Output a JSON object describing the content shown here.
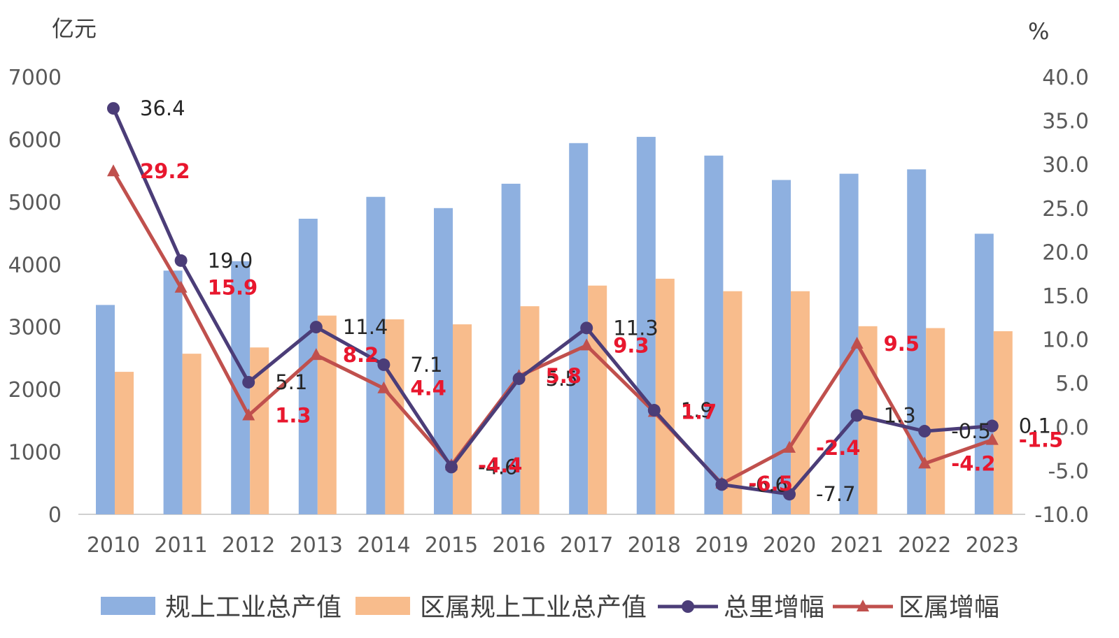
{
  "chart_data": {
    "type": "bar",
    "left_axis_unit": "亿元",
    "right_axis_unit": "%",
    "categories": [
      "2010",
      "2011",
      "2012",
      "2013",
      "2014",
      "2015",
      "2016",
      "2017",
      "2018",
      "2019",
      "2020",
      "2021",
      "2022",
      "2023"
    ],
    "left_ticks": [
      "0",
      "1000",
      "2000",
      "3000",
      "4000",
      "5000",
      "6000",
      "7000"
    ],
    "right_ticks": [
      "-10.0",
      "-5.0",
      "0.0",
      "5.0",
      "10.0",
      "15.0",
      "20.0",
      "25.0",
      "30.0",
      "35.0",
      "40.0"
    ],
    "ylim_left": [
      0,
      7000
    ],
    "ylim_right": [
      -10,
      40
    ],
    "series": [
      {
        "name": "规上工业总产值",
        "kind": "bar",
        "axis": "left",
        "color": "#8eb0e0",
        "values": [
          3350,
          3900,
          4050,
          4730,
          5080,
          4900,
          5290,
          5940,
          6040,
          5740,
          5350,
          5450,
          5520,
          4490
        ]
      },
      {
        "name": "区属规上工业总产值",
        "kind": "bar",
        "axis": "left",
        "color": "#f8bc8c",
        "values": [
          2280,
          2570,
          2670,
          3180,
          3120,
          3040,
          3330,
          3660,
          3770,
          3570,
          3570,
          3010,
          2980,
          2930
        ]
      },
      {
        "name": "总里增幅",
        "kind": "line",
        "axis": "right",
        "color": "#4b3d78",
        "marker": "circle",
        "values": [
          36.4,
          19.0,
          5.1,
          11.4,
          7.1,
          -4.6,
          5.5,
          11.3,
          1.9,
          -6.6,
          -7.7,
          1.3,
          -0.5,
          0.1
        ],
        "labels": [
          "36.4",
          "19.0",
          "5.1",
          "11.4",
          "7.1",
          "-4.6",
          "5.5",
          "11.3",
          "1.9",
          "-6.6",
          "-7.7",
          "1.3",
          "-0.5",
          "0.1"
        ]
      },
      {
        "name": "区属增幅",
        "kind": "line",
        "axis": "right",
        "color": "#c0504d",
        "marker": "triangle",
        "values": [
          29.2,
          15.9,
          1.3,
          8.2,
          4.4,
          -4.4,
          5.8,
          9.3,
          1.7,
          -6.5,
          -2.4,
          9.5,
          -4.2,
          -1.5
        ],
        "labels": [
          "29.2",
          "15.9",
          "1.3",
          "8.2",
          "4.4",
          "-4.4",
          "5.8",
          "9.3",
          "1.7",
          "-6.5",
          "-2.4",
          "9.5",
          "-4.2",
          "-1.5"
        ]
      }
    ],
    "legend": {
      "position": "bottom"
    },
    "grid": false
  }
}
